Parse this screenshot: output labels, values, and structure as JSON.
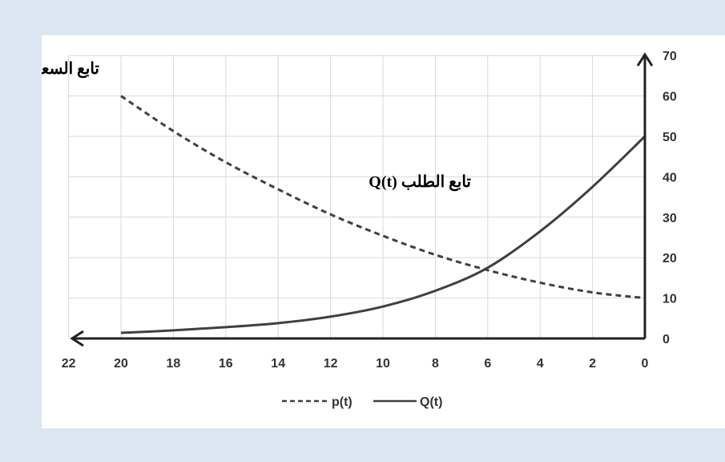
{
  "chart_data": {
    "type": "line",
    "x_direction": "reversed",
    "xlim": [
      0,
      22
    ],
    "ylim": [
      0,
      70
    ],
    "x_ticks": [
      22,
      20,
      18,
      16,
      14,
      12,
      10,
      8,
      6,
      4,
      2,
      0
    ],
    "y_ticks": [
      0,
      10,
      20,
      30,
      40,
      50,
      60,
      70
    ],
    "grid": true,
    "legend_position": "bottom",
    "series": [
      {
        "name": "p(t)",
        "style": "dashed",
        "color": "#404040",
        "x": [
          20,
          18,
          16,
          14,
          12,
          10,
          8,
          6,
          4,
          2,
          0
        ],
        "y": [
          60,
          51.3,
          43.6,
          36.9,
          30.7,
          25.4,
          20.7,
          16.9,
          13.8,
          11.4,
          10
        ]
      },
      {
        "name": "Q(t)",
        "style": "solid",
        "color": "#404040",
        "x": [
          20,
          18,
          16,
          14,
          12,
          10,
          8,
          6,
          4,
          2,
          0
        ],
        "y": [
          1.4,
          2.0,
          2.8,
          3.8,
          5.4,
          7.9,
          11.8,
          17.5,
          26.5,
          37.5,
          50
        ]
      }
    ],
    "annotations": [
      {
        "text": "تابع السعر p(t)",
        "series": "p(t)"
      },
      {
        "text": "تابع الطلب Q(t)",
        "series": "Q(t)"
      }
    ]
  }
}
